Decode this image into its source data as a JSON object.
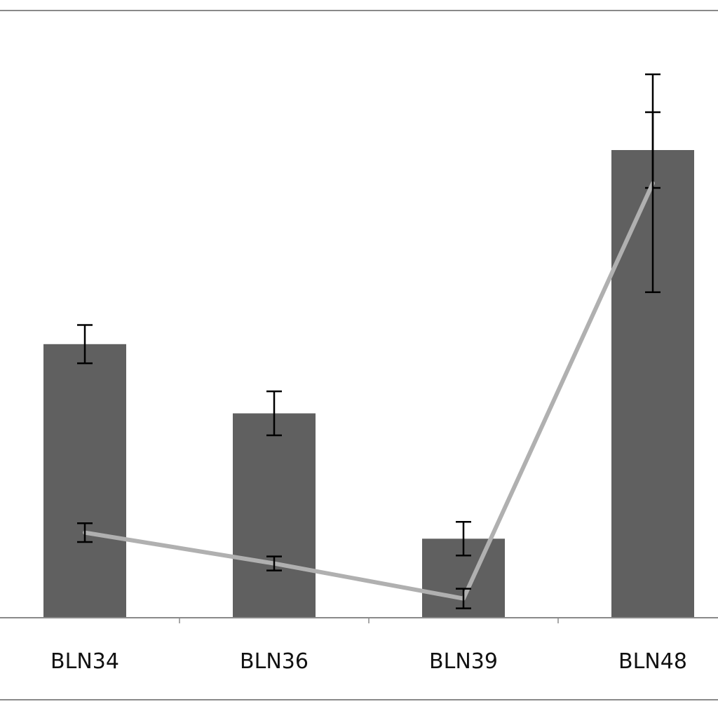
{
  "chart_data": {
    "type": "bar",
    "title": "",
    "xlabel": "",
    "ylabel": "",
    "categories": [
      "BLN34",
      "BLN36",
      "BLN39",
      "BLN48"
    ],
    "ylim": [
      0,
      100
    ],
    "series": [
      {
        "kind": "bar",
        "color": "#606060",
        "values": [
          58.5,
          43.7,
          16.9,
          100.0
        ],
        "error": [
          4.1,
          4.7,
          3.6,
          8.1
        ]
      },
      {
        "kind": "line",
        "color": "#b0b0b0",
        "values": [
          18.2,
          11.6,
          4.1,
          92.9
        ],
        "error": [
          2.0,
          1.5,
          2.1,
          23.3
        ]
      }
    ],
    "grid": false,
    "legend": "none"
  }
}
